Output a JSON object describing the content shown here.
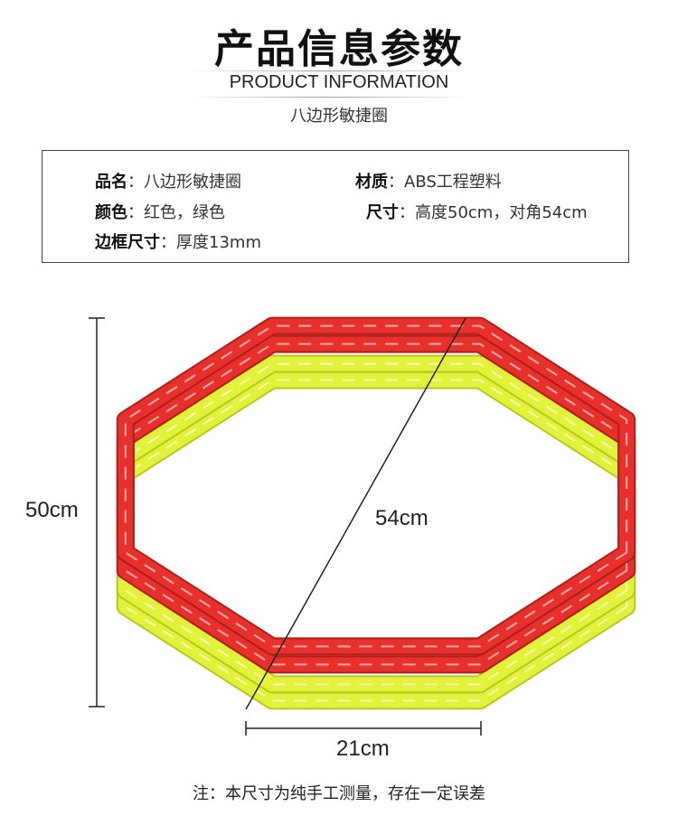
{
  "header": {
    "title": "产品信息参数",
    "subtitle": "PRODUCT INFORMATION",
    "product_name": "八边形敏捷圈"
  },
  "specs": [
    {
      "label": "品名",
      "value": "八边形敏捷圈"
    },
    {
      "label": "材质",
      "value": "ABS工程塑料"
    },
    {
      "label": "颜色",
      "value": "红色，绿色"
    },
    {
      "label": "尺寸",
      "value": "高度50cm，对角54cm"
    },
    {
      "label": "边框尺寸",
      "value": "厚度13mm"
    }
  ],
  "separator": "：",
  "dimensions": {
    "height": "50cm",
    "diagonal": "54cm",
    "frame_width": "21cm"
  },
  "note": "注：本尺寸为纯手工测量，存在一定误差",
  "colors": {
    "red": "#e8302c",
    "green": "#e2f23a"
  }
}
